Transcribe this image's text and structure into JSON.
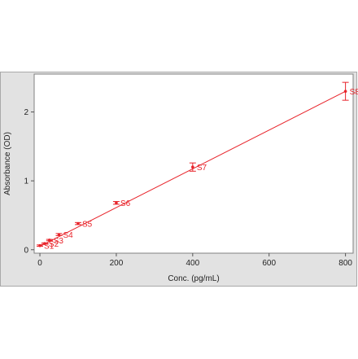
{
  "chart_data": {
    "type": "scatter",
    "xlabel": "Conc. (pg/mL)",
    "ylabel": "Absorbance (OD)",
    "xlim": [
      -15,
      820
    ],
    "ylim": [
      -0.05,
      2.55
    ],
    "x_ticks": [
      0,
      200,
      400,
      600,
      800
    ],
    "y_ticks": [
      0,
      1,
      2
    ],
    "grid": false,
    "colors": {
      "series": "#e8232a",
      "plot_bg": "#ffffff",
      "frame_bg": "#e2e2e2"
    },
    "series": [
      {
        "points": [
          {
            "label": "S1",
            "x": 0,
            "y": 0.06,
            "err": 0.01
          },
          {
            "label": "S2",
            "x": 12.5,
            "y": 0.09,
            "err": 0.01
          },
          {
            "label": "S3",
            "x": 25,
            "y": 0.14,
            "err": 0.01
          },
          {
            "label": "S4",
            "x": 50,
            "y": 0.22,
            "err": 0.015
          },
          {
            "label": "S5",
            "x": 100,
            "y": 0.38,
            "err": 0.015
          },
          {
            "label": "S6",
            "x": 200,
            "y": 0.68,
            "err": 0.02
          },
          {
            "label": "S7",
            "x": 400,
            "y": 1.2,
            "err": 0.06
          },
          {
            "label": "S8",
            "x": 800,
            "y": 2.3,
            "err": 0.13
          }
        ],
        "fit_line": {
          "x": [
            0,
            800
          ],
          "y": [
            0.05,
            2.3
          ]
        }
      }
    ]
  }
}
